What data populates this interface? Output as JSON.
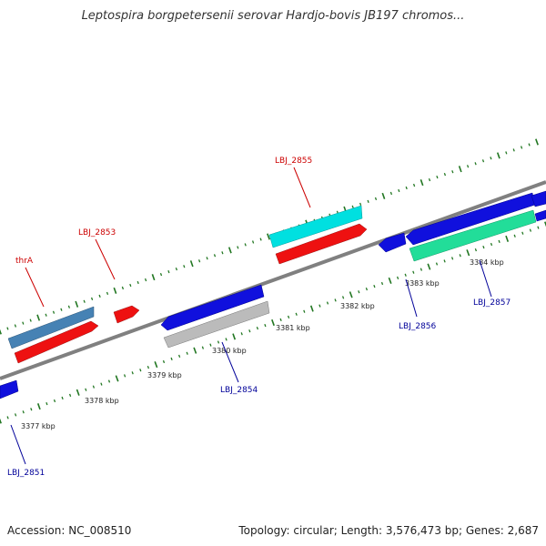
{
  "title": "Leptospira borgpetersenii serovar Hardjo-bovis JB197 chromos...",
  "footer": {
    "accession": "Accession: NC_008510",
    "summary": "Topology: circular; Length: 3,576,473 bp; Genes: 2,687"
  },
  "colors": {
    "forward_label": "#cc0000",
    "reverse_label": "#000099",
    "backbone": "#808080",
    "tick": "#227722"
  },
  "ticks": [
    "3377 kbp",
    "3378 kbp",
    "3379 kbp",
    "3380 kbp",
    "3381 kbp",
    "3382 kbp",
    "3383 kbp",
    "3384 kbp"
  ],
  "genes": [
    {
      "label": "thrA",
      "strand": "forward",
      "color": "#4682b4"
    },
    {
      "label": "",
      "strand": "forward",
      "color": "#ee1111"
    },
    {
      "label": "LBJ_2853",
      "strand": "forward",
      "color": "#ee1111"
    },
    {
      "label": "LBJ_2855",
      "strand": "forward",
      "color": "#00e0e0"
    },
    {
      "label": "",
      "strand": "forward",
      "color": "#ee1111"
    },
    {
      "label": "LBJ_2851",
      "strand": "reverse",
      "color": "#1010dd"
    },
    {
      "label": "",
      "strand": "reverse",
      "color": "#1010dd"
    },
    {
      "label": "LBJ_2854",
      "strand": "reverse",
      "color": "#bbbbbb"
    },
    {
      "label": "LBJ_2856",
      "strand": "reverse",
      "color": "#1010dd"
    },
    {
      "label": "",
      "strand": "reverse",
      "color": "#1010dd"
    },
    {
      "label": "LBJ_2857",
      "strand": "reverse",
      "color": "#22dd99"
    },
    {
      "label": "",
      "strand": "reverse",
      "color": "#1010dd"
    }
  ]
}
